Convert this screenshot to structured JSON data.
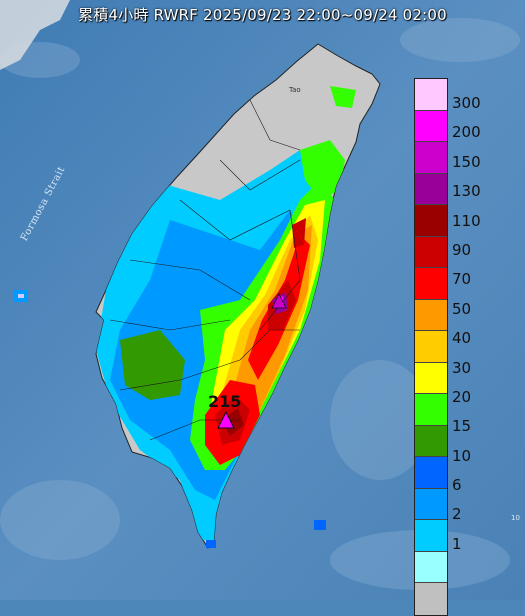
{
  "title": "累積4小時 RWRF 2025/09/23 22:00~09/24 02:00",
  "sea_label": "Formosa Strait",
  "peak_value": "215",
  "city_label": "Tao",
  "corner_tag": "10",
  "legend": {
    "labels": [
      "300",
      "200",
      "150",
      "130",
      "110",
      "90",
      "70",
      "50",
      "40",
      "30",
      "20",
      "15",
      "10",
      "6",
      "2",
      "1"
    ],
    "colors": [
      "#ffc8ff",
      "#ff00ff",
      "#cc00cc",
      "#990099",
      "#990000",
      "#cc0000",
      "#ff0000",
      "#ff9900",
      "#ffcc00",
      "#ffff00",
      "#33ff00",
      "#339900",
      "#0066ff",
      "#0099ff",
      "#00ccff",
      "#99ffff",
      "#c0c0c0"
    ]
  }
}
